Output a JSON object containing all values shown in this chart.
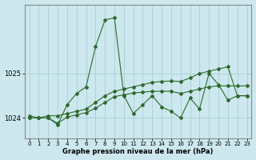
{
  "x": [
    0,
    1,
    2,
    3,
    4,
    5,
    6,
    7,
    8,
    9,
    10,
    11,
    12,
    13,
    14,
    15,
    16,
    17,
    18,
    19,
    20,
    21,
    22,
    23
  ],
  "y_main": [
    1024.05,
    1024.0,
    1024.0,
    1023.85,
    1024.3,
    1024.55,
    1024.7,
    1025.6,
    1026.2,
    1026.25,
    1024.5,
    1024.1,
    1024.3,
    1024.5,
    1024.25,
    1024.15,
    1024.0,
    1024.45,
    1024.2,
    1025.0,
    1024.75,
    1024.4,
    1024.5,
    1024.5
  ],
  "y_line2": [
    1024.0,
    1024.0,
    1024.05,
    1024.05,
    1024.1,
    1024.15,
    1024.2,
    1024.35,
    1024.5,
    1024.6,
    1024.65,
    1024.7,
    1024.75,
    1024.8,
    1024.82,
    1024.83,
    1024.82,
    1024.9,
    1025.0,
    1025.05,
    1025.1,
    1025.15,
    1024.5,
    1024.5
  ],
  "y_line3": [
    1024.0,
    1024.0,
    1024.0,
    1023.88,
    1024.02,
    1024.07,
    1024.12,
    1024.22,
    1024.35,
    1024.48,
    1024.52,
    1024.56,
    1024.58,
    1024.6,
    1024.6,
    1024.6,
    1024.55,
    1024.6,
    1024.65,
    1024.7,
    1024.72,
    1024.72,
    1024.72,
    1024.72
  ],
  "line_color": "#2d6a2d",
  "bg_color": "#cce8ee",
  "grid_color": "#a0c8cc",
  "border_color": "#888888",
  "xlabel": "Graphe pression niveau de la mer (hPa)",
  "ylim": [
    1023.55,
    1026.55
  ],
  "xlim": [
    -0.5,
    23.5
  ],
  "yticks": [
    1024,
    1025
  ],
  "xticks": [
    0,
    1,
    2,
    3,
    4,
    5,
    6,
    7,
    8,
    9,
    10,
    11,
    12,
    13,
    14,
    15,
    16,
    17,
    18,
    19,
    20,
    21,
    22,
    23
  ],
  "marker": "D",
  "markersize": 2.0,
  "linewidth": 0.8,
  "tick_fontsize": 5,
  "xlabel_fontsize": 6
}
